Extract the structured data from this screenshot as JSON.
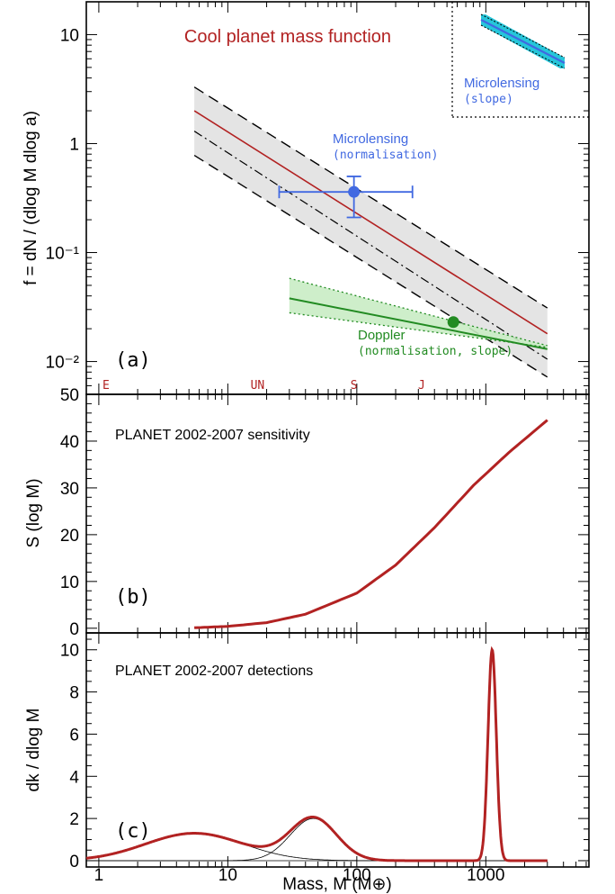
{
  "chart_data": [
    {
      "panel_label": "(a)",
      "type": "line",
      "title": "Cool planet mass function",
      "ylabel": "f = dN / (dlog M dlog a)",
      "yscale": "log",
      "xscale": "log",
      "xlim": [
        0.8,
        6300
      ],
      "ylim": [
        0.005,
        20
      ],
      "y_ticks": [
        "10⁻²",
        "10⁻¹",
        "1",
        "10"
      ],
      "mass_markers": [
        {
          "label": "E",
          "x": 1
        },
        {
          "label": "UN",
          "x": 17
        },
        {
          "label": "S",
          "x": 95
        },
        {
          "label": "J",
          "x": 318
        }
      ],
      "series": [
        {
          "role": "best fit",
          "x": [
            5.5,
            3000
          ],
          "y": [
            2.0,
            0.018
          ],
          "color": "#b22222"
        },
        {
          "role": "alternative fit",
          "x": [
            5.5,
            3000
          ],
          "y": [
            1.3,
            0.0105
          ]
        },
        {
          "role": "upper bound",
          "x": [
            5.5,
            3000
          ],
          "y": [
            3.3,
            0.031
          ]
        },
        {
          "role": "lower bound",
          "x": [
            5.5,
            3000
          ],
          "y": [
            0.78,
            0.0072
          ]
        },
        {
          "role": "doppler fit",
          "x": [
            30,
            3000
          ],
          "y": [
            0.038,
            0.013
          ],
          "y_upper": [
            0.058,
            0.014
          ],
          "y_lower": [
            0.028,
            0.0135
          ],
          "color": "#228b22"
        }
      ],
      "points": [
        {
          "label": "Microlensing",
          "sublabel": "(normalisation)",
          "x": 95,
          "y": 0.36,
          "x_err": [
            25,
            270
          ],
          "y_err": [
            0.21,
            0.5
          ],
          "color": "#4169e1"
        },
        {
          "label": "Doppler",
          "sublabel": "(normalisation, slope)",
          "x": 560,
          "y": 0.023,
          "color": "#228b22"
        }
      ],
      "inset": {
        "label": "Microlensing",
        "sublabel": "(slope)",
        "color": "#4169e1",
        "band_color": "#00bcd4"
      }
    },
    {
      "panel_label": "(b)",
      "type": "line",
      "title": "PLANET 2002-2007 sensitivity",
      "ylabel": "S (log M)",
      "xscale": "log",
      "ylim": [
        -1,
        50
      ],
      "y_ticks": [
        0,
        10,
        20,
        30,
        40,
        50
      ],
      "series": [
        {
          "x": [
            5.5,
            10,
            20,
            40,
            100,
            200,
            400,
            800,
            1500,
            3000
          ],
          "y": [
            0.1,
            0.4,
            1.2,
            3.0,
            7.5,
            13.5,
            21.5,
            30.5,
            37.5,
            44.5
          ],
          "color": "#b22222"
        }
      ]
    },
    {
      "panel_label": "(c)",
      "type": "line",
      "title": "PLANET 2002-2007 detections",
      "ylabel": "dk / dlog M",
      "xlabel": "Mass, M (M⊕)",
      "xscale": "log",
      "ylim": [
        -0.3,
        10.8
      ],
      "x_ticks": [
        "1",
        "10",
        "100",
        "1000"
      ],
      "y_ticks": [
        0,
        2,
        4,
        6,
        8,
        10
      ],
      "components": [
        {
          "center": 5.5,
          "sigma_log": 0.38,
          "amp": 1.3
        },
        {
          "center": 46,
          "sigma_log": 0.18,
          "amp": 2.0
        },
        {
          "center": 1120,
          "sigma_log": 0.032,
          "amp": 10.0
        }
      ],
      "x_range": [
        0.8,
        3000
      ],
      "color": "#b22222"
    }
  ]
}
